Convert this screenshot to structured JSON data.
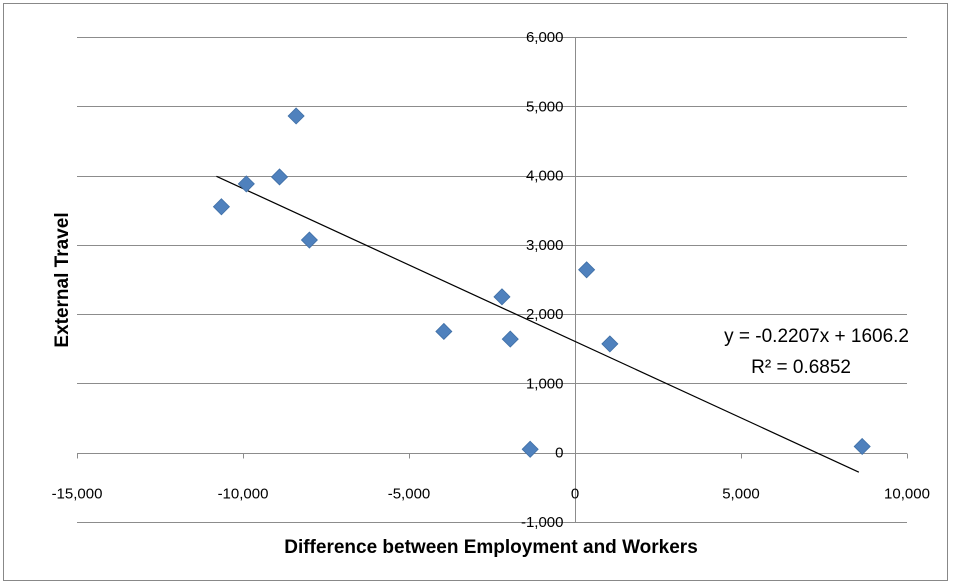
{
  "chart_data": {
    "type": "scatter",
    "xlabel": "Difference between Employment and Workers",
    "ylabel": "External Travel",
    "xlim": [
      -15000,
      10000
    ],
    "ylim": [
      -1000,
      6000
    ],
    "x_ticks": [
      -15000,
      -10000,
      -5000,
      0,
      5000,
      10000
    ],
    "y_ticks": [
      -1000,
      0,
      1000,
      2000,
      3000,
      4000,
      5000,
      6000
    ],
    "x_tick_labels": [
      "-15,000",
      "-10,000",
      "-5,000",
      "0",
      "5,000",
      "10,000"
    ],
    "y_tick_labels": [
      "-1,000",
      "0",
      "1,000",
      "2,000",
      "3,000",
      "4,000",
      "5,000",
      "6,000"
    ],
    "grid": "horizontal",
    "marker_color": "#4F81BD",
    "points": [
      {
        "x": -10650,
        "y": 3550
      },
      {
        "x": -9900,
        "y": 3880
      },
      {
        "x": -8900,
        "y": 3980
      },
      {
        "x": -8400,
        "y": 4860
      },
      {
        "x": -8000,
        "y": 3070
      },
      {
        "x": -3950,
        "y": 1750
      },
      {
        "x": -2200,
        "y": 2250
      },
      {
        "x": -1950,
        "y": 1640
      },
      {
        "x": -1350,
        "y": 50
      },
      {
        "x": 350,
        "y": 2640
      },
      {
        "x": 1050,
        "y": 1570
      },
      {
        "x": 8650,
        "y": 90
      }
    ],
    "trendline": {
      "slope": -0.2207,
      "intercept": 1606.2,
      "x_start": -10800,
      "x_end": 8550,
      "color": "#000000",
      "equation_text": "y = -0.2207x + 1606.2",
      "r2_text": "R² = 0.6852"
    }
  }
}
